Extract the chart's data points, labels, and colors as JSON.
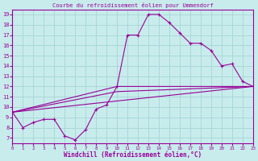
{
  "title": "Courbe du refroidissement éolien pour Ummendorf",
  "xlabel": "Windchill (Refroidissement éolien,°C)",
  "bg_color": "#c8ecec",
  "line_color": "#990099",
  "grid_color": "#a0d0d0",
  "xlim": [
    0,
    23
  ],
  "ylim": [
    6.5,
    19.5
  ],
  "xticks": [
    0,
    1,
    2,
    3,
    4,
    5,
    6,
    7,
    8,
    9,
    10,
    11,
    12,
    13,
    14,
    15,
    16,
    17,
    18,
    19,
    20,
    21,
    22,
    23
  ],
  "yticks": [
    7,
    8,
    9,
    10,
    11,
    12,
    13,
    14,
    15,
    16,
    17,
    18,
    19
  ],
  "series": [
    [
      0,
      9.5
    ],
    [
      1,
      8.0
    ],
    [
      2,
      8.5
    ],
    [
      3,
      8.8
    ],
    [
      4,
      8.8
    ],
    [
      5,
      7.2
    ],
    [
      6,
      6.8
    ],
    [
      7,
      7.8
    ],
    [
      8,
      9.8
    ],
    [
      9,
      10.2
    ],
    [
      10,
      12.0
    ],
    [
      11,
      17.0
    ],
    [
      12,
      17.0
    ],
    [
      13,
      19.0
    ],
    [
      14,
      19.0
    ],
    [
      15,
      18.2
    ],
    [
      16,
      17.2
    ],
    [
      17,
      16.2
    ],
    [
      18,
      16.2
    ],
    [
      19,
      15.5
    ],
    [
      20,
      14.0
    ],
    [
      21,
      14.2
    ],
    [
      22,
      12.5
    ],
    [
      23,
      12.0
    ]
  ],
  "line2": [
    [
      0,
      9.5
    ],
    [
      23,
      12.0
    ]
  ],
  "line3": [
    [
      0,
      9.5
    ],
    [
      10,
      12.0
    ],
    [
      23,
      12.0
    ]
  ],
  "line4": [
    [
      0,
      9.5
    ],
    [
      10,
      11.5
    ],
    [
      23,
      12.0
    ]
  ]
}
